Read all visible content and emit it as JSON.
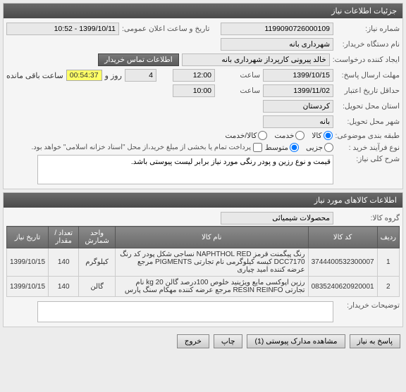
{
  "panels": {
    "details": "جزئیات اطلاعات نیاز",
    "items": "اطلاعات کالاهای مورد نیاز"
  },
  "labels": {
    "need_no": "شماره نیاز:",
    "announce_date": "تاریخ و ساعت اعلان عمومی:",
    "buyer_name": "نام دستگاه خریدار:",
    "creator": "ایجاد کننده درخواست:",
    "deadline": "مهلت ارسال پاسخ:",
    "deadline_until": "تا تاریخ:",
    "min_valid": "حداقل تاریخ اعتبار",
    "price_until": "قیمت: تا تاریخ:",
    "deliver_prov": "استان محل تحویل:",
    "deliver_city": "شهر محل تحویل:",
    "subject_type": "طبقه بندی موضوعی:",
    "purchase_type": "نوع فرآیند خرید :",
    "desc": "شرح کلی نیاز:",
    "item_group": "گروه کالا:",
    "buyer_notes": "توضیحات خریدار:",
    "time": "ساعت",
    "and_day": "روز و",
    "remain": "ساعت باقی مانده"
  },
  "values": {
    "need_no": "1199090726000109",
    "announce_date": "1399/10/11 - 10:52",
    "buyer_name": "شهرداری بانه",
    "creator": "خالد پیرونی کارپرداز شهرداری بانه",
    "deadline_date": "1399/10/15",
    "deadline_time": "12:00",
    "days_left": "4",
    "countdown": "00:54:37",
    "valid_date": "1399/11/02",
    "valid_time": "10:00",
    "province": "کردستان",
    "city": "بانه",
    "description": "قیمت و نوع رزین و پودر رنگی مورد نیاز برابر لیست پیوستی باشد.",
    "item_group": "محصولات شیمیائی",
    "note": "پرداخت تمام یا بخشی از مبلغ خرید،از محل \"اسناد خزانه اسلامی\" خواهد بود."
  },
  "subject_radios": {
    "goods": "کالا",
    "service": "خدمت",
    "both": "کالا/خدمت"
  },
  "purchase_radios": {
    "low": "جزیی",
    "mid": "متوسط"
  },
  "contact_btn": "اطلاعات تماس خریدار",
  "table": {
    "headers": {
      "row": "ردیف",
      "code": "کد کالا",
      "name": "نام کالا",
      "unit": "واحد شمارش",
      "qty": "تعداد / مقدار",
      "date": "تاریخ نیاز"
    },
    "rows": [
      {
        "n": "1",
        "code": "3744400532300007",
        "name": "رنگ پیگمنت قرمز NAPHTHOL RED نساجی شکل پودر کد رنگ DCC7170 کیسه کیلوگرمی نام تجارتی PIGMENTS مرجع عرضه کننده امید چیاری",
        "unit": "کیلوگرم",
        "qty": "140",
        "date": "1399/10/15"
      },
      {
        "n": "2",
        "code": "0835240620920001",
        "name": "رزین اپوکسی مایع ویژینید خلوص 100درصد گالن kg 20 نام تجارتی RESIN REINFO مرجع عرضه کننده مهکام سنگ پارس",
        "unit": "گالن",
        "qty": "140",
        "date": "1399/10/15"
      }
    ]
  },
  "buttons": {
    "reply": "پاسخ به نیاز",
    "attachments": "مشاهده مدارک پیوستی (1)",
    "print": "چاپ",
    "close": "خروج"
  }
}
